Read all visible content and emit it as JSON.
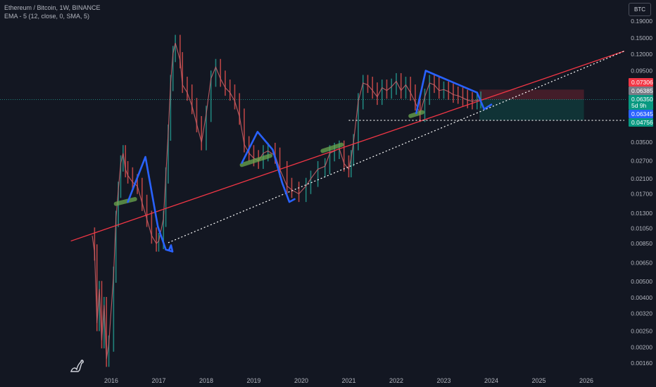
{
  "legend": {
    "title": "Ethereum / Bitcoin, 1W, BINANCE",
    "indicator": "EMA - 5 (12, close, 0, SMA, 5)"
  },
  "currency_button": "BTC",
  "colors": {
    "background": "#131722",
    "up": "#26a69a",
    "down": "#ef5350",
    "trend_line": "#f23645",
    "pattern": "#2962ff",
    "highlight": "#6aa84f",
    "dotted": "#ffffff"
  },
  "chart_data": {
    "type": "line",
    "symbol": "Ethereum / Bitcoin",
    "interval": "1W",
    "exchange": "BINANCE",
    "y_scale": "log",
    "ylim": [
      0.0014,
      0.22
    ],
    "xlim": [
      2015.15,
      2026.8
    ],
    "y_ticks": [
      "0.19000",
      "0.15000",
      "0.12000",
      "0.09500",
      "0.07300",
      "0.05700",
      "0.04500",
      "0.03500",
      "0.02700",
      "0.02100",
      "0.01700",
      "0.01300",
      "0.01050",
      "0.00850",
      "0.00650",
      "0.00500",
      "0.00400",
      "0.00320",
      "0.00250",
      "0.00200",
      "0.00160"
    ],
    "x_ticks": [
      "2016",
      "2017",
      "2018",
      "2019",
      "2020",
      "2021",
      "2022",
      "2023",
      "2024",
      "2025",
      "2026"
    ],
    "price_series": {
      "name": "ETHBTC",
      "x": [
        2015.6,
        2015.65,
        2015.7,
        2015.75,
        2015.8,
        2015.85,
        2015.9,
        2015.95,
        2016.05,
        2016.1,
        2016.15,
        2016.2,
        2016.25,
        2016.3,
        2016.35,
        2016.45,
        2016.55,
        2016.65,
        2016.75,
        2016.85,
        2016.95,
        2017.0,
        2017.1,
        2017.15,
        2017.2,
        2017.25,
        2017.3,
        2017.35,
        2017.45,
        2017.5,
        2017.6,
        2017.7,
        2017.8,
        2017.9,
        2018.0,
        2018.1,
        2018.2,
        2018.3,
        2018.4,
        2018.5,
        2018.6,
        2018.7,
        2018.8,
        2018.9,
        2019.0,
        2019.1,
        2019.2,
        2019.3,
        2019.45,
        2019.55,
        2019.7,
        2019.8,
        2019.95,
        2020.1,
        2020.2,
        2020.35,
        2020.5,
        2020.6,
        2020.7,
        2020.8,
        2020.9,
        2021.0,
        2021.05,
        2021.1,
        2021.2,
        2021.3,
        2021.4,
        2021.5,
        2021.6,
        2021.7,
        2021.8,
        2021.9,
        2022.0,
        2022.1,
        2022.2,
        2022.3,
        2022.4,
        2022.5,
        2022.6,
        2022.7,
        2022.8,
        2022.9,
        2023.0,
        2023.1,
        2023.2,
        2023.3,
        2023.4,
        2023.5,
        2023.6,
        2023.7,
        2023.78
      ],
      "y": [
        0.0095,
        0.0075,
        0.0028,
        0.0045,
        0.0022,
        0.0036,
        0.0017,
        0.0021,
        0.0055,
        0.012,
        0.018,
        0.026,
        0.03,
        0.024,
        0.022,
        0.02,
        0.019,
        0.015,
        0.012,
        0.0095,
        0.0085,
        0.0088,
        0.012,
        0.022,
        0.04,
        0.08,
        0.12,
        0.14,
        0.11,
        0.078,
        0.07,
        0.058,
        0.045,
        0.035,
        0.052,
        0.085,
        0.1,
        0.085,
        0.075,
        0.07,
        0.062,
        0.05,
        0.034,
        0.03,
        0.028,
        0.027,
        0.03,
        0.031,
        0.029,
        0.024,
        0.019,
        0.018,
        0.017,
        0.019,
        0.021,
        0.024,
        0.025,
        0.03,
        0.031,
        0.032,
        0.026,
        0.024,
        0.028,
        0.035,
        0.062,
        0.08,
        0.078,
        0.072,
        0.066,
        0.075,
        0.072,
        0.076,
        0.082,
        0.072,
        0.078,
        0.07,
        0.061,
        0.052,
        0.066,
        0.08,
        0.078,
        0.072,
        0.073,
        0.071,
        0.068,
        0.067,
        0.065,
        0.063,
        0.062,
        0.063,
        0.0635
      ]
    },
    "annotations": {
      "red_trend_line": {
        "x": [
          2015.15,
          2026.8
        ],
        "y": [
          0.0088,
          0.125
        ]
      },
      "dotted_support_line": {
        "x": [
          2017.2,
          2026.8
        ],
        "y": [
          0.0086,
          0.125
        ]
      },
      "horizontal_dotted_level": {
        "x": [
          2021.0,
          2026.8
        ],
        "y": 0.0475
      },
      "blue_zigzags": [
        {
          "x": [
            2016.35,
            2016.72,
            2016.98,
            2017.15,
            2017.29,
            2017.26,
            2017.22
          ],
          "y": [
            0.0152,
            0.0285,
            0.0108,
            0.0078,
            0.0076,
            0.0083,
            0.0078
          ]
        },
        {
          "x": [
            2018.75,
            2019.08,
            2019.4,
            2019.6,
            2019.75,
            2019.86
          ],
          "y": [
            0.0262,
            0.0405,
            0.0315,
            0.0198,
            0.0152,
            0.0158
          ]
        },
        {
          "x": [
            2022.42,
            2022.62,
            2023.7,
            2023.85,
            2023.93,
            2024.0
          ],
          "y": [
            0.0525,
            0.095,
            0.07,
            0.0555,
            0.0575,
            0.0592
          ]
        }
      ],
      "green_highlights": [
        {
          "x": [
            2016.1,
            2016.5
          ],
          "y": [
            0.0148,
            0.0158
          ]
        },
        {
          "x": [
            2018.75,
            2019.35
          ],
          "y": [
            0.0255,
            0.029
          ]
        },
        {
          "x": [
            2020.45,
            2020.85
          ],
          "y": [
            0.031,
            0.0338
          ]
        },
        {
          "x": [
            2022.3,
            2022.55
          ],
          "y": [
            0.0505,
            0.0532
          ]
        }
      ],
      "position_box": {
        "x": [
          2023.75,
          2025.95
        ],
        "entry": 0.0635,
        "stop": 0.073,
        "target": 0.04756
      }
    },
    "price_labels": [
      {
        "value": "0.07306",
        "color": "#f23645"
      },
      {
        "value": "0.06385",
        "color": "#787b86"
      },
      {
        "value": "0.06350",
        "color": "#089981"
      },
      {
        "value": "5d 9h",
        "color": "#089981"
      },
      {
        "value": "0.06345",
        "color": "#2962ff"
      },
      {
        "value": "0.04756",
        "color": "#089981"
      }
    ]
  }
}
